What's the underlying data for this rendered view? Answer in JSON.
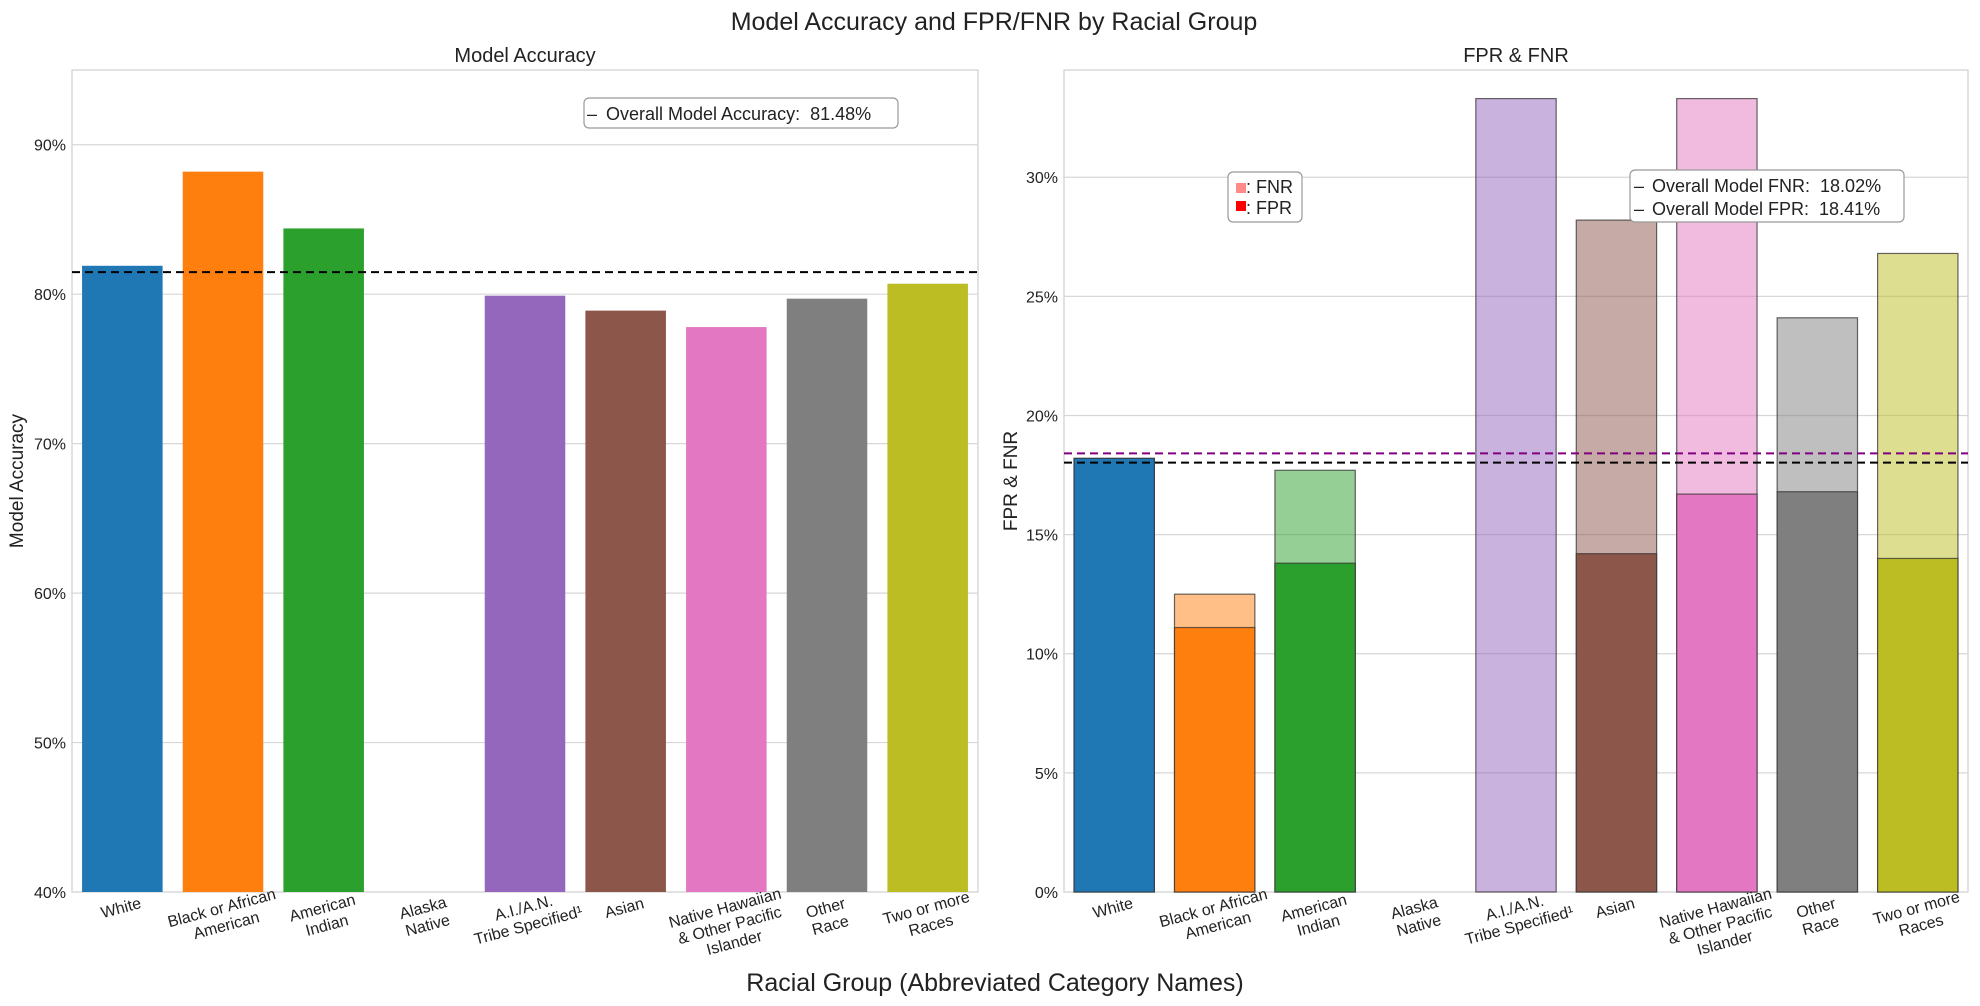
{
  "figure": {
    "title": "Model Accuracy and FPR/FNR by Racial Group",
    "xlabel": "Racial Group (Abbreviated Category Names)"
  },
  "chart_data": [
    {
      "type": "bar",
      "title": "Model Accuracy",
      "xlabel": "",
      "ylabel": "Model Accuracy",
      "ylim": [
        40,
        95
      ],
      "y_unit": "%",
      "yticks": [
        40,
        50,
        60,
        70,
        80,
        90
      ],
      "ytick_labels": [
        "40%",
        "50%",
        "60%",
        "70%",
        "80%",
        "90%"
      ],
      "grid": "horizontal",
      "categories": [
        [
          "White"
        ],
        [
          "Black or African",
          "American"
        ],
        [
          "American",
          "Indian"
        ],
        [
          "Alaska",
          "Native"
        ],
        [
          "A.I./A.N.",
          "Tribe Specified¹"
        ],
        [
          "Asian"
        ],
        [
          "Native Hawaiian",
          "& Other Pacific",
          "Islander"
        ],
        [
          "Other",
          "Race"
        ],
        [
          "Two or more",
          "Races"
        ]
      ],
      "values": [
        81.9,
        88.2,
        84.4,
        null,
        79.9,
        78.9,
        77.8,
        79.7,
        80.7
      ],
      "colors": [
        "#1f77b4",
        "#ff7f0e",
        "#2ca02c",
        "#d62728",
        "#9467bd",
        "#8c564b",
        "#e377c2",
        "#7f7f7f",
        "#bcbd22"
      ],
      "reference_line": {
        "value": 81.48,
        "color": "#000000",
        "style": "dashed"
      },
      "legend": {
        "placement": "top-right",
        "entries": [
          {
            "symbol": "–",
            "color": "#000000",
            "label": "Overall Model Accuracy:  81.48%"
          }
        ]
      }
    },
    {
      "type": "bar",
      "title": "FPR & FNR",
      "xlabel": "",
      "ylabel": "FPR & FNR",
      "ylim": [
        0,
        34.5
      ],
      "y_unit": "%",
      "yticks": [
        0,
        5,
        10,
        15,
        20,
        25,
        30
      ],
      "ytick_labels": [
        "0%",
        "5%",
        "10%",
        "15%",
        "20%",
        "25%",
        "30%"
      ],
      "grid": "horizontal",
      "categories": [
        [
          "White"
        ],
        [
          "Black or African",
          "American"
        ],
        [
          "American",
          "Indian"
        ],
        [
          "Alaska",
          "Native"
        ],
        [
          "A.I./A.N.",
          "Tribe Specified¹"
        ],
        [
          "Asian"
        ],
        [
          "Native Hawaiian",
          "& Other Pacific",
          "Islander"
        ],
        [
          "Other",
          "Race"
        ],
        [
          "Two or more",
          "Races"
        ]
      ],
      "colors": [
        "#1f77b4",
        "#ff7f0e",
        "#2ca02c",
        "#d62728",
        "#9467bd",
        "#8c564b",
        "#e377c2",
        "#7f7f7f",
        "#bcbd22"
      ],
      "series": [
        {
          "name": "FNR",
          "style": "light",
          "values": [
            18.2,
            12.5,
            17.7,
            null,
            33.3,
            28.2,
            33.3,
            24.1,
            26.8
          ]
        },
        {
          "name": "FPR",
          "style": "solid",
          "values": [
            18.2,
            11.1,
            13.8,
            null,
            null,
            14.2,
            16.7,
            16.8,
            14.0
          ]
        }
      ],
      "reference_lines": [
        {
          "name": "Overall Model FNR",
          "value": 18.02,
          "color": "#000000",
          "style": "dashed"
        },
        {
          "name": "Overall Model FPR",
          "value": 18.41,
          "color": "#800080",
          "style": "dashed"
        }
      ],
      "legend_key": {
        "placement": "upper-left",
        "entries": [
          {
            "label": ": FNR",
            "color": "#ff8a8a"
          },
          {
            "label": ": FPR",
            "color": "#ff0000"
          }
        ]
      },
      "legend": {
        "placement": "top-right",
        "entries": [
          {
            "symbol": "–",
            "color": "#000000",
            "label": "Overall Model FNR:  18.02%"
          },
          {
            "symbol": "–",
            "color": "#800080",
            "label": "Overall Model FPR:  18.41%"
          }
        ]
      }
    }
  ]
}
